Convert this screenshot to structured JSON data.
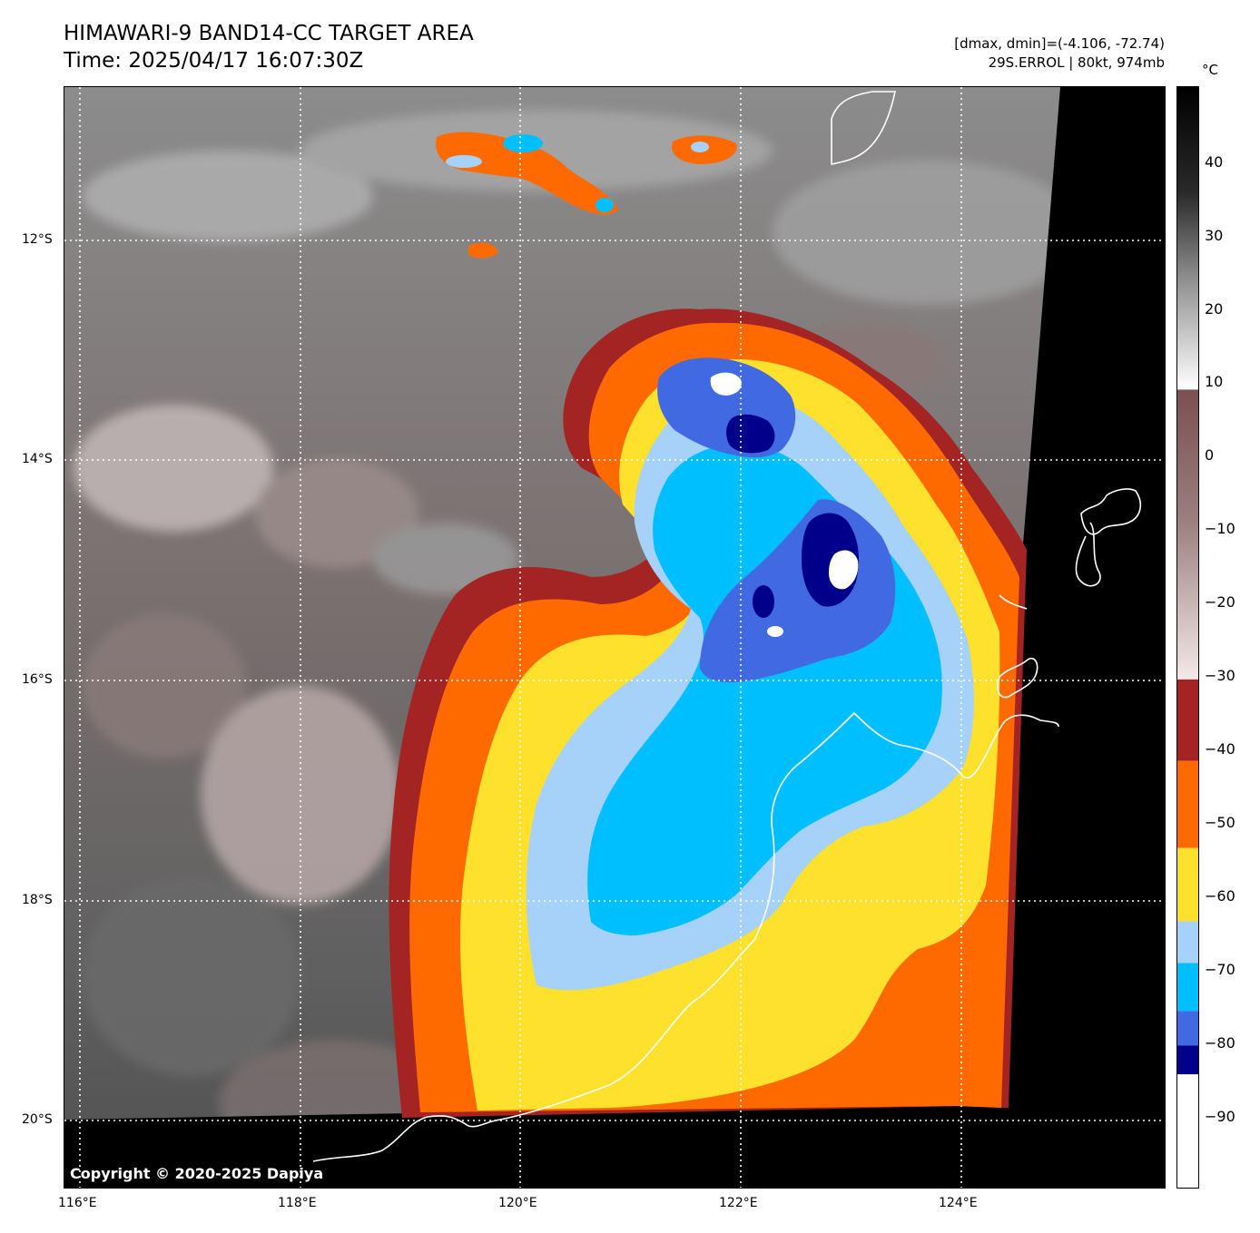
{
  "header": {
    "title_line1": "HIMAWARI-9 BAND14-CC TARGET AREA",
    "title_line2": "Time: 2025/04/17 16:07:30Z",
    "dminmax": "[dmax, dmin]=(-4.106, -72.74)",
    "storm_info": "29S.ERROL | 80kt, 974mb"
  },
  "map": {
    "copyright": "Copyright © 2020-2025 Dapiya",
    "lat_labels": [
      "12°S",
      "14°S",
      "16°S",
      "18°S",
      "20°S"
    ],
    "lon_labels": [
      "116°E",
      "118°E",
      "120°E",
      "122°E",
      "124°E"
    ]
  },
  "colorbar": {
    "unit": "°C",
    "ticks": [
      "40",
      "30",
      "20",
      "10",
      "0",
      "−10",
      "−20",
      "−30",
      "−40",
      "−50",
      "−60",
      "−70",
      "−80",
      "−90"
    ],
    "colors": {
      "dark_red": "#a42424",
      "orange": "#ff6a00",
      "yellow": "#fde12d",
      "light_blue": "#a6d2fa",
      "cyan": "#00bfff",
      "royal_blue": "#4169e1",
      "navy": "#00008b",
      "white": "#ffffff"
    }
  }
}
